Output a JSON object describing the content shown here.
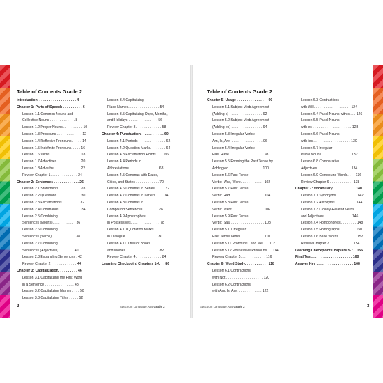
{
  "left_page": {
    "title": "Table of Contents Grade 2",
    "page_number": "2",
    "footer_series": "Spectrum Language Arts",
    "footer_grade": "Grade 2",
    "columns": [
      [
        {
          "text": "Introduction. . . . . . . . . . . . . . . . . . . . 4",
          "style": "ch"
        },
        {
          "text": "Chapter 1: Parts of Speech . . . . . . . . . . 6",
          "style": "ch"
        },
        {
          "text": "Lesson 1.1 Common Nouns and",
          "style": "ind"
        },
        {
          "text": "Collective Nouns . . . . . . . . . . . . . 8",
          "style": "ind2"
        },
        {
          "text": "Lesson 1.2 Proper Nouns . . . . . . . . . . 10",
          "style": "ind"
        },
        {
          "text": "Lesson 1.3 Pronouns . . . . . . . . . . . . . 12",
          "style": "ind"
        },
        {
          "text": "Lesson 1.4 Reflexive Pronouns . . . . . 14",
          "style": "ind"
        },
        {
          "text": "Lesson 1.5 Indefinite Pronouns. . . . . 16",
          "style": "ind"
        },
        {
          "text": "Lesson 1.6 Verbs. . . . . . . . . . . . . . . . 18",
          "style": "ind"
        },
        {
          "text": "Lesson 1.7 Adjectives . . . . . . . . . . . . 20",
          "style": "ind"
        },
        {
          "text": "Lesson 1.8 Adverbs. . . . . . . . . . . . . . 22",
          "style": "ind"
        },
        {
          "text": "Review Chapter 1. . . . . . . . . . . . . . 24",
          "style": "ind"
        },
        {
          "text": "Chapter 2: Sentences . . . . . . . . . . . . . 26",
          "style": "ch"
        },
        {
          "text": "Lesson 2.1 Statements . . . . . . . . . . . 28",
          "style": "ind"
        },
        {
          "text": "Lesson 2.2 Questions . . . . . . . . . . . . 30",
          "style": "ind"
        },
        {
          "text": "Lesson 2.3 Exclamations . . . . . . . . . 32",
          "style": "ind"
        },
        {
          "text": "Lesson 2.4 Commands . . . . . . . . . . . 34",
          "style": "ind"
        },
        {
          "text": "Lesson 2.5 Combining",
          "style": "ind"
        },
        {
          "text": "Sentences (Nouns). . . . . . . . . . . . 36",
          "style": "ind2"
        },
        {
          "text": "Lesson 2.6 Combining",
          "style": "ind"
        },
        {
          "text": "Sentences (Verbs) . . . . . . . . . . . . 38",
          "style": "ind2"
        },
        {
          "text": "Lesson 2.7 Combining",
          "style": "ind"
        },
        {
          "text": "Sentences (Adjectives). . . . . . . . 40",
          "style": "ind2"
        },
        {
          "text": "Lesson 2.8 Expanding Sentences . 42",
          "style": "ind"
        },
        {
          "text": "Review Chapter 2 . . . . . . . . . . . . . 44",
          "style": "ind"
        },
        {
          "text": "Chapter 3: Capitalization. . . . . . . . . . 46",
          "style": "ch"
        },
        {
          "text": "Lesson 3.1 Capitalizing the First Word",
          "style": "ind"
        },
        {
          "text": "in a Sentence . . . . . . . . . . . . . . . 48",
          "style": "ind2"
        },
        {
          "text": "Lesson 3.2 Capitalizing Names . . . . 50",
          "style": "ind"
        },
        {
          "text": "Lesson 3.3 Capitalizing Titles . . . . . 52",
          "style": "ind"
        }
      ],
      [
        {
          "text": "Lesson 3.4 Capitalizing",
          "style": "ind"
        },
        {
          "text": "Place Names. . . . . . . . . . . . . . . . 54",
          "style": "ind2"
        },
        {
          "text": "Lesson 3.5 Capitalizing Days, Months,",
          "style": "ind"
        },
        {
          "text": "and Holidays . . . . . . . . . . . . . . . 56",
          "style": "ind2"
        },
        {
          "text": "Review Chapter 3 . . . . . . . . . . . . . 58",
          "style": "ind"
        },
        {
          "text": "Chapter 4: Punctuation. . . . . . . . . . . . 60",
          "style": "ch"
        },
        {
          "text": "Lesson 4.1 Periods . . . . . . . . . . . . . . 62",
          "style": "ind"
        },
        {
          "text": "Lesson 4.2 Question Marks. . . . . . . . 64",
          "style": "ind"
        },
        {
          "text": "Lesson 4.3 Exclamation Points . . . . 66",
          "style": "ind"
        },
        {
          "text": "Lesson 4.4 Periods in",
          "style": "ind"
        },
        {
          "text": "Abbreviations . . . . . . . . . . . . . . . 68",
          "style": "ind2"
        },
        {
          "text": "Lesson 4.5 Commas with Dates,",
          "style": "ind"
        },
        {
          "text": "Cities, and States . . . . . . . . . . . . 70",
          "style": "ind2"
        },
        {
          "text": "Lesson 4.6 Commas in Series . . . . . 72",
          "style": "ind"
        },
        {
          "text": "Lesson 4.7 Commas in Letters . . . . 74",
          "style": "ind"
        },
        {
          "text": "Lesson 4.8 Commas in",
          "style": "ind"
        },
        {
          "text": "Compound Sentences . . . . . . . . 76",
          "style": "ind2"
        },
        {
          "text": "Lesson 4.9 Apostrophes",
          "style": "ind"
        },
        {
          "text": "in Possessives. . . . . . . . . . . . . . . 78",
          "style": "ind2"
        },
        {
          "text": "Lesson 4.10 Quotation Marks",
          "style": "ind"
        },
        {
          "text": "in Dialogue. . . . . . . . . . . . . . . . . 80",
          "style": "ind2"
        },
        {
          "text": "Lesson 4.11 Titles of Books",
          "style": "ind"
        },
        {
          "text": "and Movies . . . . . . . . . . . . . . . . . 82",
          "style": "ind2"
        },
        {
          "text": "Review Chapter 4 . . . . . . . . . . . . . 84",
          "style": "ind"
        },
        {
          "text": "Learning Checkpoint Chapters 1-4. . . 86",
          "style": "ch"
        }
      ]
    ]
  },
  "right_page": {
    "title": "Table of Contents Grade 2",
    "page_number": "3",
    "footer_series": "Spectrum Language Arts",
    "footer_grade": "Grade 2",
    "columns": [
      [
        {
          "text": "Chapter 5: Usage . . . . . . . . . . . . . . . . 90",
          "style": "ch"
        },
        {
          "text": "Lesson 5.1 Subject-Verb Agreement",
          "style": "ind"
        },
        {
          "text": "(Adding s) . . . . . . . . . . . . . . . . . 92",
          "style": "ind2"
        },
        {
          "text": "Lesson 5.2 Subject-Verb Agreement",
          "style": "ind"
        },
        {
          "text": "(Adding es) . . . . . . . . . . . . . . . . 94",
          "style": "ind2"
        },
        {
          "text": "Lesson 5.3 Irregular Verbs:",
          "style": "ind"
        },
        {
          "text": "Am, Is, Are. . . . . . . . . . . . . . . . . 96",
          "style": "ind2"
        },
        {
          "text": "Lesson 5.4 Irregular Verbs:",
          "style": "ind"
        },
        {
          "text": "Has, Have. . . . . . . . . . . . . . . . . . 98",
          "style": "ind2"
        },
        {
          "text": "Lesson 5.5 Forming the Past Tense by",
          "style": "ind"
        },
        {
          "text": "Adding ed . . . . . . . . . . . . . . . . . 100",
          "style": "ind2"
        },
        {
          "text": "Lesson 5.6 Past Tense",
          "style": "ind"
        },
        {
          "text": "Verbs: Was, Were. . . . . . . . . . . . 102",
          "style": "ind2"
        },
        {
          "text": "Lesson 5.7 Past Tense",
          "style": "ind"
        },
        {
          "text": "Verbs: Had . . . . . . . . . . . . . . . . . 104",
          "style": "ind2"
        },
        {
          "text": "Lesson 5.8 Past Tense",
          "style": "ind"
        },
        {
          "text": "Verbs: Went . . . . . . . . . . . . . . . . 106",
          "style": "ind2"
        },
        {
          "text": "Lesson 5.9 Past Tense",
          "style": "ind"
        },
        {
          "text": "Verbs: Saw . . . . . . . . . . . . . . . . . 108",
          "style": "ind2"
        },
        {
          "text": "Lesson 5.10 Irregular",
          "style": "ind"
        },
        {
          "text": "Past Tense Verbs . . . . . . . . . . . . 110",
          "style": "ind2"
        },
        {
          "text": "Lesson 5.11 Pronouns I and Me . . . 112",
          "style": "ind"
        },
        {
          "text": "Lesson 5.12 Possessive Pronouns. . . 114",
          "style": "ind"
        },
        {
          "text": "Review Chapter 5. . . . . . . . . . . . . 116",
          "style": "ind"
        },
        {
          "text": "Chapter 6: Word Study. . . . . . . . . . . . 118",
          "style": "ch"
        },
        {
          "text": "Lesson 6.1 Contractions",
          "style": "ind"
        },
        {
          "text": "with Not . . . . . . . . . . . . . . . . . . . 120",
          "style": "ind2"
        },
        {
          "text": "Lesson 6.2 Contractions",
          "style": "ind"
        },
        {
          "text": "with Am, Is, Are. . . . . . . . . . . . . 122",
          "style": "ind2"
        }
      ],
      [
        {
          "text": "Lesson 6.3 Contractions",
          "style": "ind"
        },
        {
          "text": "with Will. . . . . . . . . . . . . . . . . . . 124",
          "style": "ind2"
        },
        {
          "text": "Lesson 6.4 Plural Nouns with s . . . 126",
          "style": "ind"
        },
        {
          "text": "Lesson 6.5 Plural Nouns",
          "style": "ind"
        },
        {
          "text": "with es . . . . . . . . . . . . . . . . . . . . 128",
          "style": "ind2"
        },
        {
          "text": "Lesson 6.6 Plural Nouns",
          "style": "ind"
        },
        {
          "text": "with ies . . . . . . . . . . . . . . . . . . . 130",
          "style": "ind2"
        },
        {
          "text": "Lesson 6.7 Irregular",
          "style": "ind"
        },
        {
          "text": "Plural Nouns . . . . . . . . . . . . . . . 132",
          "style": "ind2"
        },
        {
          "text": "Lesson 6.8 Comparative",
          "style": "ind"
        },
        {
          "text": "Adjectives . . . . . . . . . . . . . . . . . 134",
          "style": "ind2"
        },
        {
          "text": "Lesson 6.9 Compound Words. . . . 136",
          "style": "ind"
        },
        {
          "text": "Review Chapter 6 . . . . . . . . . . . . 138",
          "style": "ind"
        },
        {
          "text": "Chapter 7: Vocabulary. . . . . . . . . . . . 140",
          "style": "ch"
        },
        {
          "text": "Lesson 7.1 Synonyms. . . . . . . . . . . 142",
          "style": "ind"
        },
        {
          "text": "Lesson 7.2 Antonyms. . . . . . . . . . . 144",
          "style": "ind"
        },
        {
          "text": "Lesson 7.3 Closely-Related Verbs",
          "style": "ind"
        },
        {
          "text": "and Adjectives . . . . . . . . . . . . . . 146",
          "style": "ind2"
        },
        {
          "text": "Lesson 7.4 Homophones . . . . . . . . 148",
          "style": "ind"
        },
        {
          "text": "Lesson 7.5 Homographs . . . . . . . . 150",
          "style": "ind"
        },
        {
          "text": "Lesson 7.6 Base Words . . . . . . . . . 152",
          "style": "ind"
        },
        {
          "text": "Review Chapter 7 . . . . . . . . . . . . 154",
          "style": "ind"
        },
        {
          "text": "Learning Checkpoint Chapters 5-7. . 156",
          "style": "ch"
        },
        {
          "text": "Final Test. . . . . . . . . . . . . . . . . . . . . 160",
          "style": "ch"
        },
        {
          "text": "Answer Key . . . . . . . . . . . . . . . . . . . 168",
          "style": "ch"
        }
      ]
    ]
  },
  "colors": {
    "band": [
      "#e31b23",
      "#f26522",
      "#f7941d",
      "#ffcb05",
      "#8dc63f",
      "#00a651",
      "#00aeef",
      "#0072bc",
      "#2e3192",
      "#92278f",
      "#ec008c"
    ],
    "text": "#231f20"
  }
}
